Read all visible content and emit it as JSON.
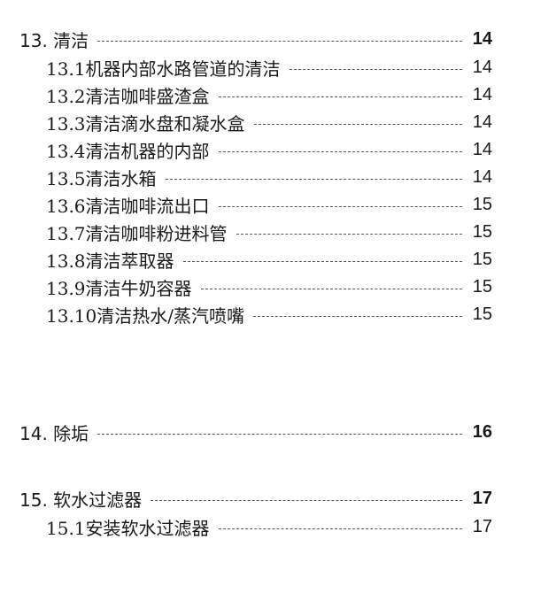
{
  "toc": [
    {
      "label": "13. 清洁",
      "page": "14",
      "level": 1
    },
    {
      "label": "13.1机器内部水路管道的清洁",
      "page": "14",
      "level": 2
    },
    {
      "label": "13.2清洁咖啡盛渣盒",
      "page": "14",
      "level": 2
    },
    {
      "label": "13.3清洁滴水盘和凝水盒",
      "page": "14",
      "level": 2
    },
    {
      "label": "13.4清洁机器的内部",
      "page": "14",
      "level": 2
    },
    {
      "label": "13.5清洁水箱",
      "page": "14",
      "level": 2
    },
    {
      "label": "13.6清洁咖啡流出口",
      "page": "15",
      "level": 2
    },
    {
      "label": "13.7清洁咖啡粉进料管",
      "page": "15",
      "level": 2
    },
    {
      "label": "13.8清洁萃取器",
      "page": "15",
      "level": 2
    },
    {
      "label": "13.9清洁牛奶容器",
      "page": "15",
      "level": 2
    },
    {
      "label": "13.10清洁热水/蒸汽喷嘴",
      "page": "15",
      "level": 2
    },
    {
      "label": "14. 除垢",
      "page": "16",
      "level": 1
    },
    {
      "label": "15. 软水过滤器",
      "page": "17",
      "level": 1
    },
    {
      "label": "15.1安装软水过滤器",
      "page": "17",
      "level": 2
    }
  ]
}
